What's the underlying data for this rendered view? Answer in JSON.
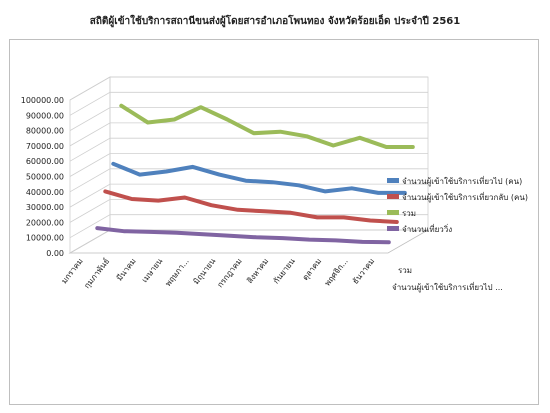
{
  "chart_data": {
    "type": "line",
    "title": "สถิติผู้เข้าใช้บริการสถานีขนส่งผู้โดยสารอำเภอโพนทอง จังหวัดร้อยเอ็ด ประจำปี 2561",
    "categories": [
      "มกราคม",
      "กุมภาพันธ์",
      "มีนาคม",
      "เมษายน",
      "พฤษภา...",
      "มิถุนายน",
      "กรกฎาคม",
      "สิงหาคม",
      "กันยายน",
      "ตุลาคม",
      "พฤศจิก...",
      "ธันวาคม"
    ],
    "y_ticks": [
      "0.00",
      "10000.00",
      "20000.00",
      "30000.00",
      "40000.00",
      "50000.00",
      "60000.00",
      "70000.00",
      "80000.00",
      "90000.00",
      "100000.00"
    ],
    "ylim": [
      0,
      100000
    ],
    "series": [
      {
        "name": "จำนวนผู้เข้าใช้บริการเที่ยวไป (คน)",
        "color": "#4f81bd",
        "values": [
          47000,
          40000,
          42000,
          45000,
          40000,
          36000,
          35000,
          33000,
          29000,
          31000,
          28000,
          28000
        ]
      },
      {
        "name": "จำนวนผู้เข้าใช้บริการเที่ยวกลับ (คน)",
        "color": "#c0504d",
        "values": [
          32000,
          27000,
          26000,
          28000,
          23000,
          20000,
          19000,
          18000,
          15000,
          15000,
          13000,
          12000
        ]
      },
      {
        "name": "รวม",
        "color": "#9bbb59",
        "values": [
          82000,
          71000,
          73000,
          81000,
          73000,
          64000,
          65000,
          62000,
          56000,
          61000,
          55000,
          55000
        ]
      },
      {
        "name": "จำนวนเที่ยววิ่ง",
        "color": "#8064a2",
        "values": [
          11000,
          9000,
          8500,
          8000,
          7000,
          6000,
          5000,
          4500,
          3500,
          3000,
          2000,
          1800
        ]
      }
    ],
    "depth_labels": [
      "รวม",
      "จำนวนผู้เข้าใช้บริการเที่ยวไป ..."
    ],
    "legend_position": "right",
    "grid": true
  }
}
